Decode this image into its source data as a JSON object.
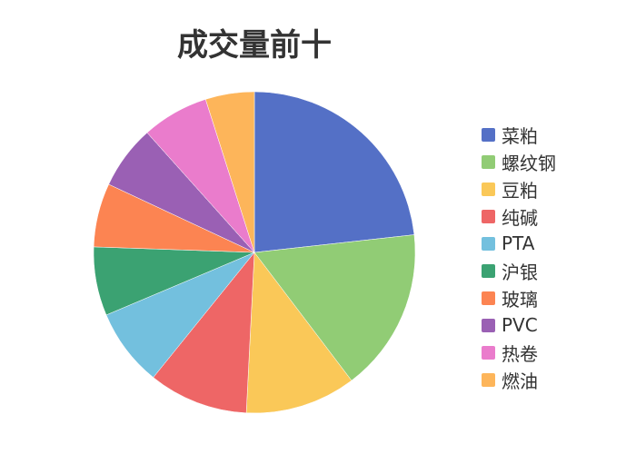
{
  "chart_data": {
    "type": "pie",
    "title": "成交量前十",
    "legend_position": "right",
    "start_angle": "top",
    "direction": "clockwise",
    "categories": [
      "菜粕",
      "螺纹钢",
      "豆粕",
      "纯碱",
      "PTA",
      "沪银",
      "玻璃",
      "PVC",
      "热卷",
      "燃油"
    ],
    "values": [
      23.2,
      16.4,
      11.1,
      10.0,
      7.8,
      6.9,
      6.4,
      6.4,
      6.7,
      4.9
    ],
    "colors": [
      "#5470c6",
      "#91cc75",
      "#fac858",
      "#ee6666",
      "#73c0de",
      "#3ba272",
      "#fc8452",
      "#9a60b4",
      "#ea7ccc",
      "#fdb55a"
    ]
  }
}
